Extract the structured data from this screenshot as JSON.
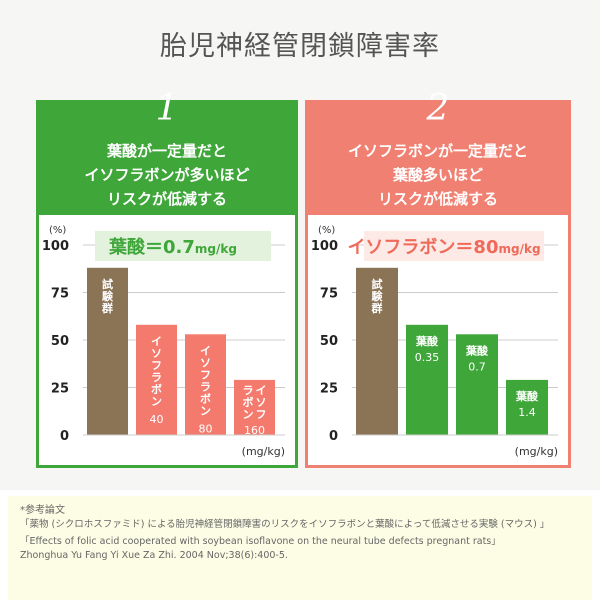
{
  "title": "胎児神経管閉鎖障害率",
  "panels": [
    {
      "number": "1",
      "heading": [
        "葉酸が一定量だと",
        "イソフラボンが多いほど",
        "リスクが低減する"
      ],
      "condition": "葉酸＝0.7",
      "condition_unit": "mg/kg"
    },
    {
      "number": "2",
      "heading": [
        "イソフラボンが一定量だと",
        "葉酸多いほど",
        "リスクが低減する"
      ],
      "condition": "イソフラボン＝80",
      "condition_unit": "mg/kg"
    }
  ],
  "chart_data": [
    {
      "type": "bar",
      "ylabel": "(%)",
      "xlabel": "(mg/kg)",
      "ylim": [
        0,
        100
      ],
      "yticks": [
        "0",
        "25",
        "50",
        "75",
        "100"
      ],
      "grid": true,
      "categories": [
        [
          "試験群"
        ],
        [
          "イソフラボン",
          "40"
        ],
        [
          "イソフラボン",
          "80"
        ],
        [
          "イソフ",
          "ラボン",
          "160"
        ]
      ],
      "values": [
        88,
        58,
        53,
        29
      ],
      "colors": [
        "#8b7355",
        "#f47a6d",
        "#f47a6d",
        "#f47a6d"
      ]
    },
    {
      "type": "bar",
      "ylabel": "(%)",
      "xlabel": "(mg/kg)",
      "ylim": [
        0,
        100
      ],
      "yticks": [
        "0",
        "25",
        "50",
        "75",
        "100"
      ],
      "grid": true,
      "categories": [
        [
          "試験群"
        ],
        [
          "葉酸",
          "0.35"
        ],
        [
          "葉酸",
          "0.7"
        ],
        [
          "葉酸",
          "1.4"
        ]
      ],
      "values": [
        88,
        58,
        53,
        29
      ],
      "colors": [
        "#8b7355",
        "#3fa63a",
        "#3fa63a",
        "#3fa63a"
      ]
    }
  ],
  "references": {
    "heading": "*参考論文",
    "ja": "「薬物 (シクロホスファミド) による胎児神経管閉鎖障害のリスクをイソフラボンと葉酸によって低減させる実験 (マウス) 」",
    "en1": "「Effects of folic acid cooperated with soybean isoflavone on the neural tube defects pregnant rats」",
    "en2": "Zhonghua Yu Fang Yi Xue Za Zhi. 2004 Nov;38(6):400-5."
  }
}
